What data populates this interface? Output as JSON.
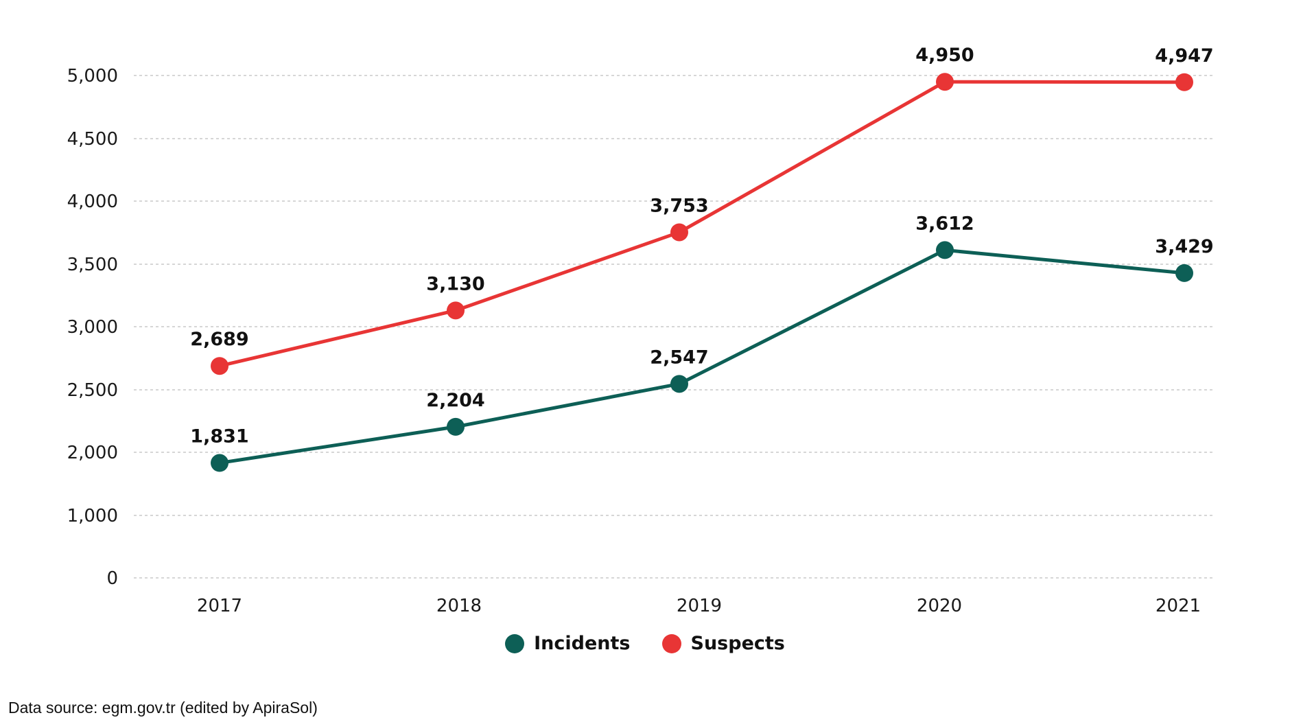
{
  "chart_data": {
    "type": "line",
    "categories": [
      "2017",
      "2018",
      "2019",
      "2020",
      "2021"
    ],
    "y_ticks": [
      {
        "label": "0",
        "value": 0
      },
      {
        "label": "1,000",
        "value": 1000
      },
      {
        "label": "2,000",
        "value": 2000
      },
      {
        "label": "2,500",
        "value": 2500
      },
      {
        "label": "3,000",
        "value": 3000
      },
      {
        "label": "3,500",
        "value": 3500
      },
      {
        "label": "4,000",
        "value": 4000
      },
      {
        "label": "4,500",
        "value": 4500
      },
      {
        "label": "5,000",
        "value": 5000
      }
    ],
    "series": [
      {
        "name": "Incidents",
        "color": "#0d5f56",
        "values": [
          1831,
          2204,
          2547,
          3612,
          3429
        ],
        "labels": [
          "1,831",
          "2,204",
          "2,547",
          "3,612",
          "3,429"
        ]
      },
      {
        "name": "Suspects",
        "color": "#e83535",
        "values": [
          2689,
          3130,
          3753,
          4950,
          4947
        ],
        "labels": [
          "2,689",
          "3,130",
          "3,753",
          "4,950",
          "4,947"
        ]
      }
    ],
    "grid": true,
    "legend_position": "bottom-center"
  },
  "source_text": "Data source: egm.gov.tr (edited by ApiraSol)"
}
